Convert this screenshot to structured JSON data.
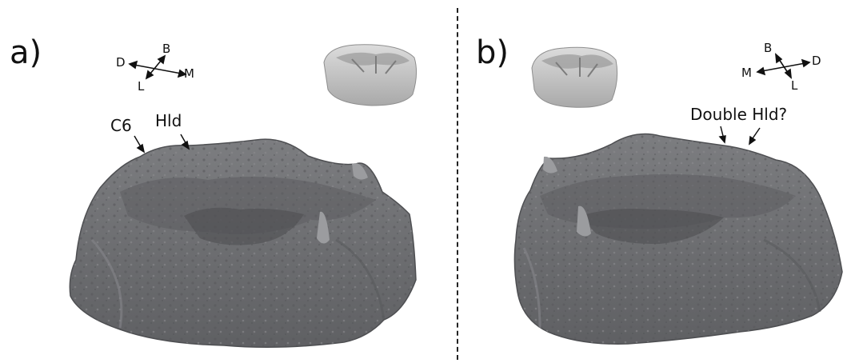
{
  "panel_a": {
    "label": "a)",
    "annotations": [
      "C6",
      "Hld"
    ],
    "orientation": {
      "b": "B",
      "d": "D",
      "l": "L",
      "m": "M"
    }
  },
  "panel_b": {
    "label": "b)",
    "annotations": [
      "Double Hld?"
    ],
    "orientation": {
      "b": "B",
      "d": "D",
      "l": "L",
      "m": "M"
    }
  },
  "colors": {
    "tooth_dark": "#6f7073",
    "tooth_light": "#c8c8c8",
    "divider": "#222222"
  }
}
